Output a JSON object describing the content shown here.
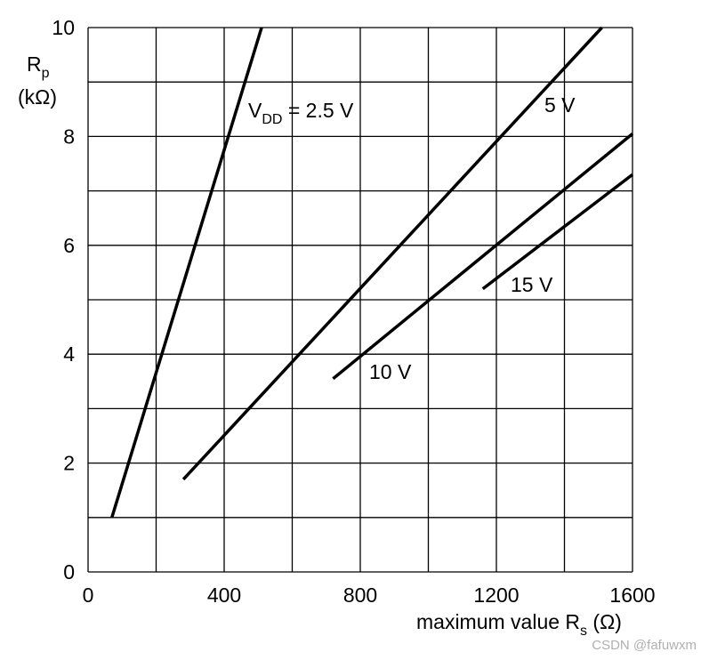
{
  "chart_data": {
    "type": "line",
    "xlabel_main": "maximum value R",
    "xlabel_sub": "s",
    "xlabel_unit": " (Ω)",
    "ylabel_main": "R",
    "ylabel_sub": "p",
    "ylabel_unit": "(kΩ)",
    "xlim": [
      0,
      1600
    ],
    "ylim": [
      0,
      10
    ],
    "xticks": [
      0,
      400,
      800,
      1200,
      1600
    ],
    "yticks": [
      0,
      2,
      4,
      6,
      8,
      10
    ],
    "x_gridlines": [
      0,
      200,
      400,
      600,
      800,
      1000,
      1200,
      1400,
      1600
    ],
    "y_gridlines": [
      0,
      1,
      2,
      3,
      4,
      5,
      6,
      7,
      8,
      9,
      10
    ],
    "grid": true,
    "series": [
      {
        "label_main": "V",
        "label_sub": "DD",
        "label_rest": " = 2.5 V",
        "points": [
          [
            70,
            1.0
          ],
          [
            510,
            10.0
          ]
        ]
      },
      {
        "label_main": "5 V",
        "points": [
          [
            280,
            1.7
          ],
          [
            1510,
            10.0
          ]
        ]
      },
      {
        "label_main": "10 V",
        "points": [
          [
            720,
            3.55
          ],
          [
            1600,
            8.05
          ]
        ]
      },
      {
        "label_main": "15 V",
        "points": [
          [
            1160,
            5.2
          ],
          [
            1600,
            7.3
          ]
        ]
      }
    ]
  },
  "watermark": "CSDN @fafuwxm"
}
